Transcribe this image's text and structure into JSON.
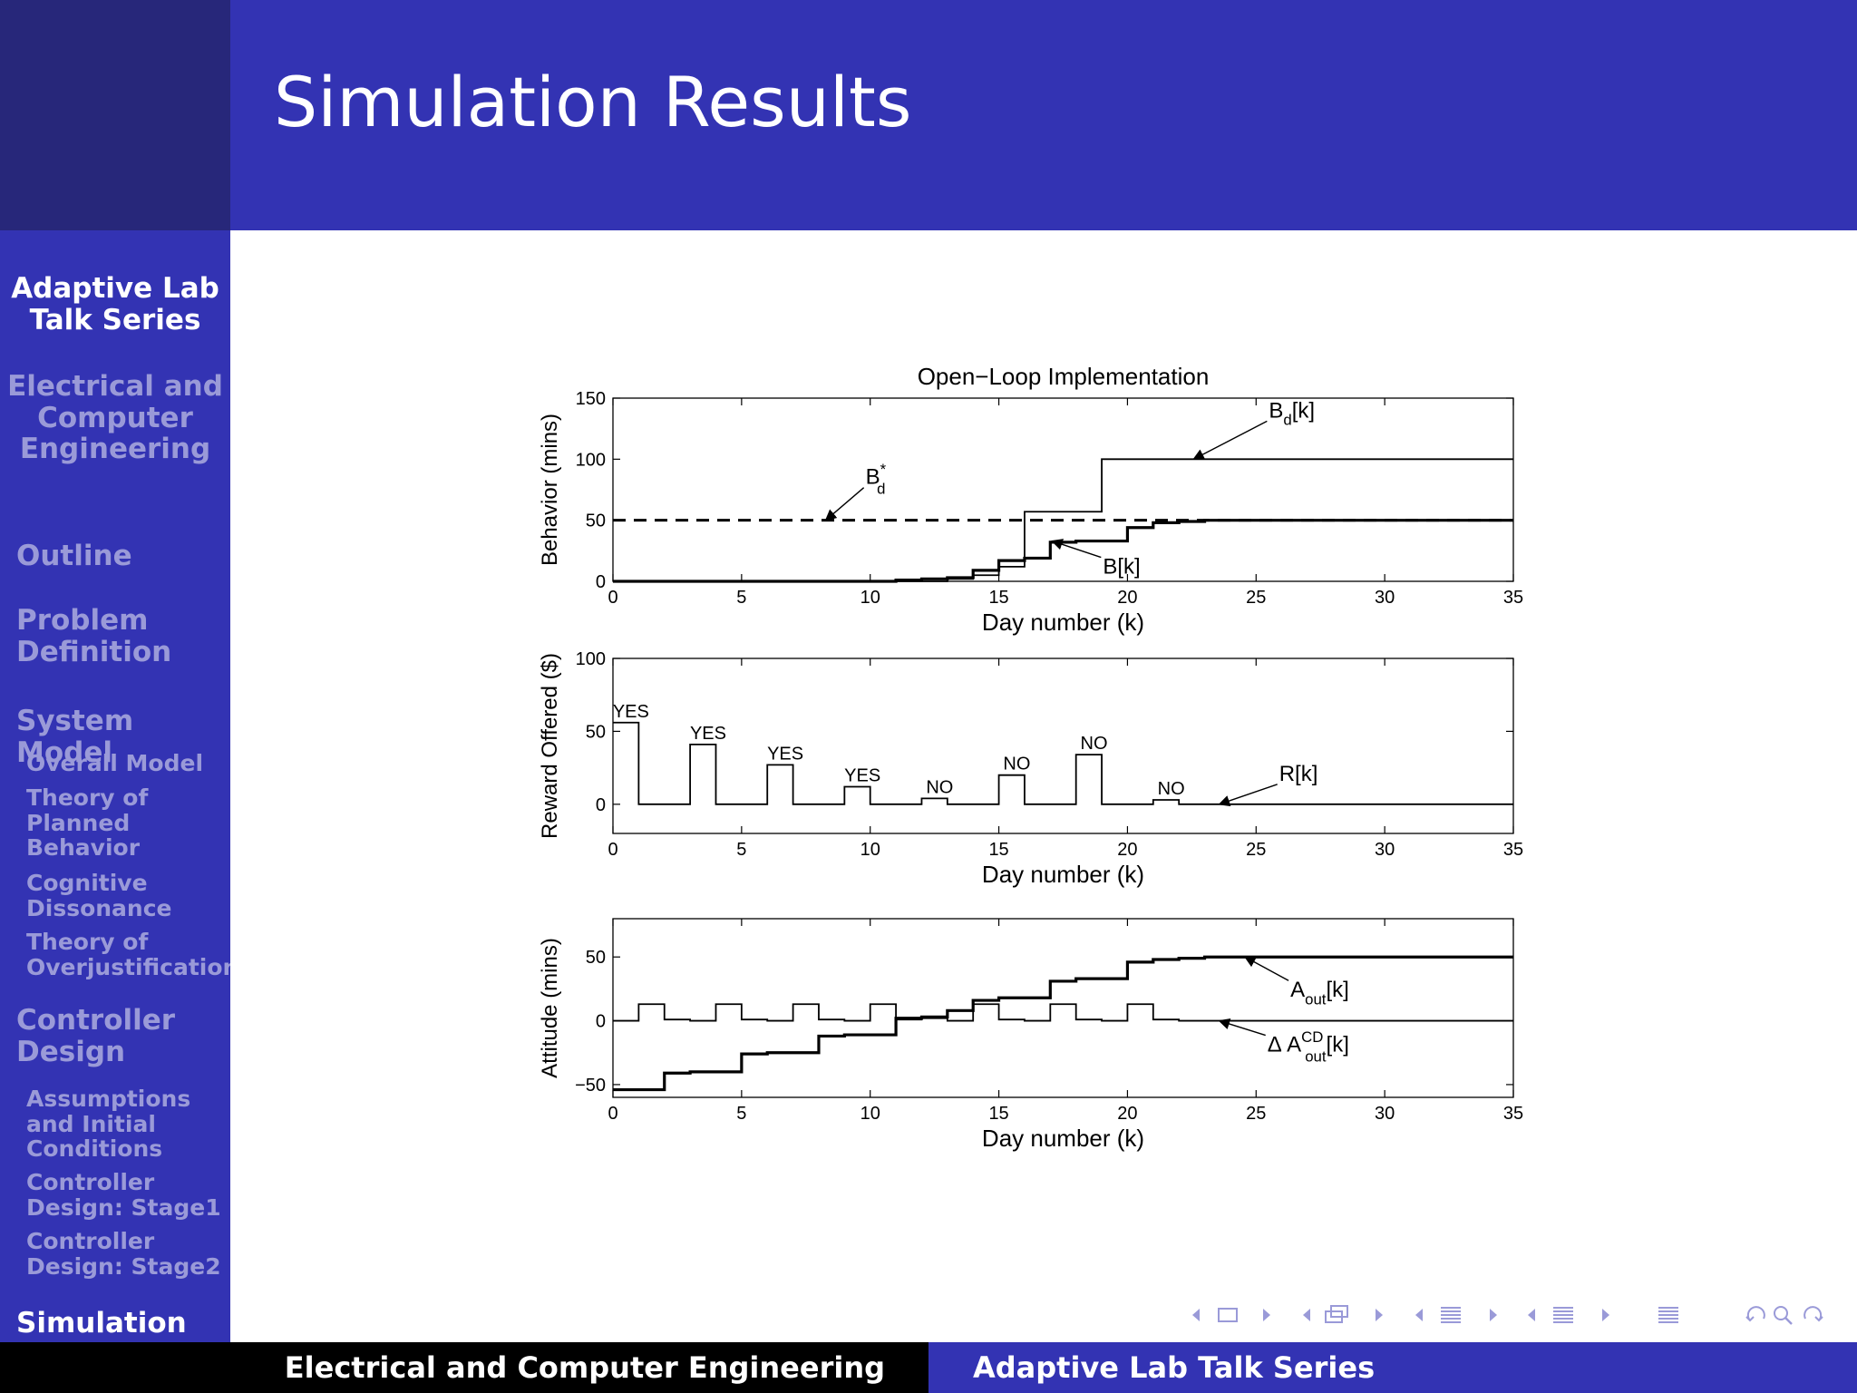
{
  "slide": {
    "title": "Simulation Results"
  },
  "sidebar": {
    "talk_title_line1": "Adaptive Lab",
    "talk_title_line2": "Talk Series",
    "institute_line1": "Electrical and",
    "institute_line2": "Computer",
    "institute_line3": "Engineering",
    "sections": [
      {
        "label": "Outline"
      },
      {
        "label_line1": "Problem",
        "label_line2": "Definition"
      },
      {
        "label": "System Model",
        "items": [
          {
            "line1": "Overall Model"
          },
          {
            "line1": "Theory of",
            "line2": "Planned",
            "line3": "Behavior"
          },
          {
            "line1": "Cognitive",
            "line2": "Dissonance"
          },
          {
            "line1": "Theory of",
            "line2": "Overjustification"
          }
        ]
      },
      {
        "label_line1": "Controller",
        "label_line2": "Design",
        "items": [
          {
            "line1": "Assumptions",
            "line2": "and Initial",
            "line3": "Conditions"
          },
          {
            "line1": "Controller",
            "line2": "Design:  Stage1"
          },
          {
            "line1": "Controller",
            "line2": "Design:  Stage2"
          }
        ]
      },
      {
        "label": "Simulation"
      }
    ]
  },
  "footer": {
    "left": "Electrical and Computer Engineering",
    "right": "Adaptive Lab Talk Series"
  },
  "navigation": {
    "icons": [
      "arrow-left-icon",
      "frame-icon",
      "arrow-right-icon",
      "arrow-left-icon",
      "subsection-icon",
      "arrow-right-icon",
      "arrow-left-icon",
      "section-icon",
      "arrow-right-icon",
      "arrow-left-icon",
      "slide-icon",
      "arrow-right-icon",
      "align-icon",
      "back-icon",
      "search-icon",
      "forward-icon"
    ],
    "color": "#9a9ad8"
  },
  "colors": {
    "header": "#3333b3",
    "sidebar": "#3333b3",
    "sidebar_dark": "#27277a",
    "footer_left": "#000000",
    "active_text": "#ffffff",
    "inactive_text": "#9a9ad8"
  },
  "chart_data": [
    {
      "type": "line",
      "title": "Open−Loop Implementation",
      "xlabel": "Day number (k)",
      "ylabel": "Behavior (mins)",
      "xlim": [
        0,
        35
      ],
      "ylim": [
        0,
        150
      ],
      "xticks": [
        "0",
        "5",
        "10",
        "15",
        "20",
        "25",
        "30",
        "35"
      ],
      "yticks": [
        "0",
        "50",
        "100",
        "150"
      ],
      "step": true,
      "series": [
        {
          "name": "B_d[k]",
          "style": "thin solid",
          "x": [
            0,
            10,
            11,
            12,
            13,
            14,
            15,
            16,
            17,
            18,
            19,
            20,
            35
          ],
          "y": [
            0,
            0,
            0,
            0,
            2,
            5,
            12,
            57,
            57,
            57,
            100,
            100,
            100
          ]
        },
        {
          "name": "B*_d",
          "style": "dashed",
          "x": [
            0,
            35
          ],
          "y": [
            50,
            50
          ]
        },
        {
          "name": "B[k]",
          "style": "thick solid",
          "x": [
            0,
            10,
            11,
            12,
            13,
            14,
            15,
            16,
            17,
            18,
            19,
            20,
            21,
            22,
            23,
            35
          ],
          "y": [
            0,
            0,
            1,
            2,
            3,
            9,
            17,
            19,
            32,
            33,
            33,
            44,
            48,
            49,
            50,
            50
          ]
        }
      ],
      "annotations": [
        {
          "text": "B",
          "sub": "d",
          "suffix": "[k]",
          "points_to": [
            22.5,
            100
          ]
        },
        {
          "text": "B",
          "sub": "d",
          "sup": "*",
          "points_to": [
            8.2,
            50
          ]
        },
        {
          "text": "B[k]",
          "points_to": [
            17,
            33
          ]
        }
      ]
    },
    {
      "type": "line",
      "title": "",
      "xlabel": "Day number (k)",
      "ylabel": "Reward Offered ($)",
      "xlim": [
        0,
        35
      ],
      "ylim": [
        -20,
        100
      ],
      "xticks": [
        "0",
        "5",
        "10",
        "15",
        "20",
        "25",
        "30",
        "35"
      ],
      "yticks": [
        "0",
        "50",
        "100"
      ],
      "step": true,
      "series": [
        {
          "name": "R[k]",
          "style": "thin solid",
          "x": [
            0,
            1,
            3,
            4,
            6,
            7,
            9,
            10,
            12,
            13,
            15,
            16,
            18,
            19,
            21,
            22,
            35
          ],
          "y": [
            56,
            0,
            41,
            0,
            27,
            0,
            12,
            0,
            4,
            0,
            20,
            0,
            34,
            0,
            3,
            0,
            0
          ]
        }
      ],
      "annotations": [
        {
          "text": "YES",
          "at": [
            0.7,
            56
          ]
        },
        {
          "text": "YES",
          "at": [
            3.7,
            41
          ]
        },
        {
          "text": "YES",
          "at": [
            6.7,
            27
          ]
        },
        {
          "text": "YES",
          "at": [
            9.7,
            12
          ]
        },
        {
          "text": "NO",
          "at": [
            12.7,
            4
          ]
        },
        {
          "text": "NO",
          "at": [
            15.7,
            20
          ]
        },
        {
          "text": "NO",
          "at": [
            18.7,
            34
          ]
        },
        {
          "text": "NO",
          "at": [
            21.7,
            3
          ]
        },
        {
          "text": "R[k]",
          "points_to": [
            23.5,
            0
          ]
        }
      ]
    },
    {
      "type": "line",
      "title": "",
      "xlabel": "Day number (k)",
      "ylabel": "Attitude (mins)",
      "xlim": [
        0,
        35
      ],
      "ylim": [
        -60,
        80
      ],
      "xticks": [
        "0",
        "5",
        "10",
        "15",
        "20",
        "25",
        "30",
        "35"
      ],
      "yticks": [
        "−50",
        "0",
        "50"
      ],
      "step": true,
      "series": [
        {
          "name": "A_out[k]",
          "style": "thick solid",
          "x": [
            0,
            2,
            3,
            5,
            6,
            8,
            9,
            11,
            12,
            13,
            14,
            15,
            17,
            18,
            19,
            20,
            21,
            22,
            23,
            35
          ],
          "y": [
            -54,
            -41,
            -40,
            -26,
            -25,
            -12,
            -11,
            2,
            3,
            8,
            16,
            18,
            31,
            33,
            33,
            46,
            48,
            49,
            50,
            50
          ]
        },
        {
          "name": "Δ A_out^CD[k]",
          "style": "thin solid",
          "x": [
            0,
            1,
            2,
            3,
            4,
            5,
            6,
            7,
            8,
            9,
            10,
            11,
            12,
            13,
            14,
            15,
            16,
            17,
            18,
            19,
            20,
            21,
            22,
            23,
            35
          ],
          "y": [
            0,
            13,
            1,
            0,
            13,
            1,
            0,
            13,
            1,
            0,
            13,
            1,
            2,
            0,
            13,
            1,
            0,
            13,
            1,
            0,
            13,
            1,
            0,
            0,
            0
          ]
        }
      ],
      "annotations": [
        {
          "text": "A",
          "sub": "out",
          "suffix": "[k]",
          "points_to": [
            24.5,
            50
          ]
        },
        {
          "text": "Δ A",
          "sub": "out",
          "sup": "CD",
          "suffix": "[k]",
          "points_to": [
            23.5,
            0
          ]
        }
      ]
    }
  ]
}
